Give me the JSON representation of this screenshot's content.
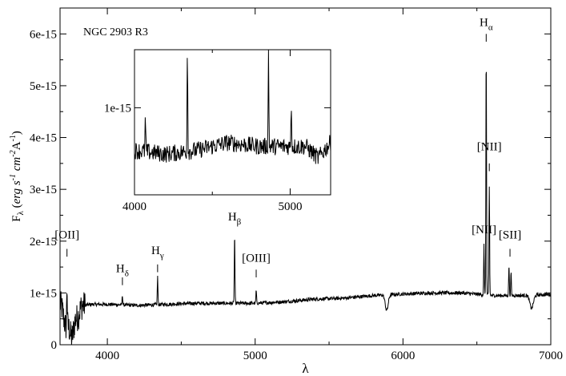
{
  "chart_data": {
    "type": "line",
    "main": {
      "object_label": "NGC 2903 R3",
      "xlabel": "λ",
      "ylabel_parts": {
        "F": "F",
        "sub_lambda": "λ",
        "open": " (",
        "erg": "erg s",
        "exp1": "-1",
        "cm": " cm",
        "exp2": "-2",
        "A": "A",
        "exp3": "-1",
        "close": ")"
      },
      "xlim": [
        3680,
        7000
      ],
      "ylim": [
        0,
        6.5e-15
      ],
      "xticks": [
        4000,
        5000,
        6000,
        7000
      ],
      "xtick_labels": [
        "4000",
        "5000",
        "6000",
        "7000"
      ],
      "yticks": [
        0,
        1e-15,
        2e-15,
        3e-15,
        4e-15,
        5e-15,
        6e-15
      ],
      "ytick_labels": [
        "0",
        "1e-15",
        "2e-15",
        "3e-15",
        "4e-15",
        "5e-15",
        "6e-15"
      ],
      "continuum": [
        [
          3680,
          8e-16
        ],
        [
          3760,
          6e-16
        ],
        [
          3800,
          7.5e-16
        ],
        [
          3900,
          7.8e-16
        ],
        [
          4000,
          7.8e-16
        ],
        [
          4200,
          7.6e-16
        ],
        [
          4400,
          7.8e-16
        ],
        [
          4600,
          8e-16
        ],
        [
          4800,
          8e-16
        ],
        [
          5000,
          8e-16
        ],
        [
          5200,
          8.3e-16
        ],
        [
          5400,
          8.8e-16
        ],
        [
          5600,
          9e-16
        ],
        [
          5800,
          9.5e-16
        ],
        [
          6000,
          9.8e-16
        ],
        [
          6200,
          1e-15
        ],
        [
          6400,
          1e-15
        ],
        [
          6600,
          9.5e-16
        ],
        [
          6800,
          9.5e-16
        ],
        [
          7000,
          9.7e-16
        ]
      ],
      "absorption_features": [
        [
          3720,
          3.5e-16,
          15
        ],
        [
          3760,
          4.5e-16,
          15
        ],
        [
          3800,
          2e-16,
          12
        ],
        [
          5890,
          3e-16,
          10
        ],
        [
          6870,
          2.5e-16,
          12
        ]
      ],
      "emission_lines": [
        {
          "wavelength": 3727,
          "peak": 1.5e-15
        },
        {
          "wavelength": 4102,
          "peak": 9.5e-16
        },
        {
          "wavelength": 4340,
          "peak": 1.32e-15
        },
        {
          "wavelength": 4861,
          "peak": 2.15e-15
        },
        {
          "wavelength": 5007,
          "peak": 1.05e-15
        },
        {
          "wavelength": 6548,
          "peak": 1.9e-15
        },
        {
          "wavelength": 6563,
          "peak": 5.72e-15
        },
        {
          "wavelength": 6584,
          "peak": 3.05e-15
        },
        {
          "wavelength": 6717,
          "peak": 1.55e-15
        },
        {
          "wavelength": 6731,
          "peak": 1.4e-15
        }
      ],
      "line_labels": [
        {
          "text": "[OII]",
          "sub": "",
          "x": 3727,
          "y": 2.05e-15,
          "tick_top": 1.85e-15,
          "tick_bottom": 1.7e-15
        },
        {
          "text": "H",
          "sub": "δ",
          "x": 4102,
          "y": 1.4e-15,
          "tick_top": 1.3e-15,
          "tick_bottom": 1.15e-15
        },
        {
          "text": "H",
          "sub": "γ",
          "x": 4340,
          "y": 1.75e-15,
          "tick_top": 1.55e-15,
          "tick_bottom": 1.4e-15
        },
        {
          "text": "H",
          "sub": "β",
          "x": 4861,
          "y": 2.4e-15,
          "tick_top": 2.55e-15,
          "tick_bottom": 2.4e-15
        },
        {
          "text": "[OIII]",
          "sub": "",
          "x": 5007,
          "y": 1.6e-15,
          "tick_top": 1.45e-15,
          "tick_bottom": 1.3e-15
        },
        {
          "text": "[NII]",
          "sub": "",
          "x": 6548,
          "y": 2.15e-15,
          "tick_top": 1.95e-15,
          "tick_bottom": 1.8e-15
        },
        {
          "text": "H",
          "sub": "α",
          "x": 6563,
          "y": 6.15e-15,
          "tick_top": 6e-15,
          "tick_bottom": 5.85e-15
        },
        {
          "text": "[NII]",
          "sub": "",
          "x": 6584,
          "y": 3.75e-15,
          "tick_top": 3.5e-15,
          "tick_bottom": 3.35e-15
        },
        {
          "text": "[SII]",
          "sub": "",
          "x": 6724,
          "y": 2.05e-15,
          "tick_top": 1.85e-15,
          "tick_bottom": 1.7e-15
        }
      ]
    },
    "inset": {
      "xlim": [
        4000,
        5260
      ],
      "ylim": [
        5.5e-16,
        1.3e-15
      ],
      "xticks": [
        4000,
        5000
      ],
      "xtick_labels": [
        "4000",
        "5000"
      ],
      "yticks": [
        1e-15
      ],
      "ytick_labels": [
        "1e-15"
      ],
      "continuum": [
        [
          4000,
          7.8e-16
        ],
        [
          4200,
          7.6e-16
        ],
        [
          4400,
          7.8e-16
        ],
        [
          4500,
          8e-16
        ],
        [
          4600,
          8.2e-16
        ],
        [
          4800,
          8e-16
        ],
        [
          5000,
          8e-16
        ],
        [
          5100,
          8e-16
        ],
        [
          5180,
          7.4e-16
        ],
        [
          5260,
          8.2e-16
        ]
      ],
      "emission_lines": [
        {
          "wavelength": 4070,
          "peak": 9.5e-16
        },
        {
          "wavelength": 4340,
          "peak": 1.35e-15
        },
        {
          "wavelength": 4861,
          "peak": 1.35e-15
        },
        {
          "wavelength": 5007,
          "peak": 1.05e-15
        }
      ]
    }
  }
}
